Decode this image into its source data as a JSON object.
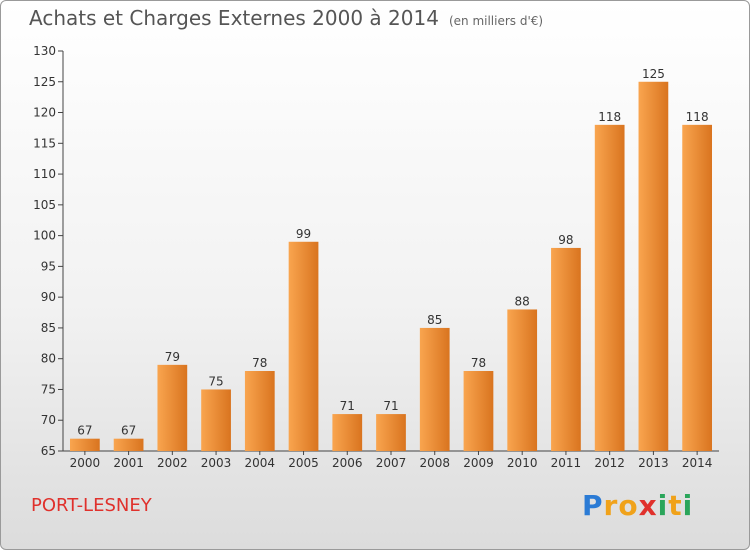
{
  "chart_data": {
    "type": "bar",
    "title": "Achats et Charges Externes 2000 à 2014",
    "subtitle": "(en milliers d'€)",
    "categories": [
      "2000",
      "2001",
      "2002",
      "2003",
      "2004",
      "2005",
      "2006",
      "2007",
      "2008",
      "2009",
      "2010",
      "2011",
      "2012",
      "2013",
      "2014"
    ],
    "values": [
      67,
      67,
      79,
      75,
      78,
      99,
      71,
      71,
      85,
      78,
      88,
      98,
      118,
      125,
      118
    ],
    "ylim": [
      65,
      130
    ],
    "yticks": [
      65,
      70,
      75,
      80,
      85,
      90,
      95,
      100,
      105,
      110,
      115,
      120,
      125,
      130
    ],
    "grid": false,
    "bar_color": "#f0852d"
  },
  "footer": {
    "city": "PORT-LESNEY",
    "logo_letters": [
      "P",
      "r",
      "o",
      "x",
      "i",
      "t",
      "i"
    ],
    "logo_colors": [
      "#2b7bd5",
      "#f0a21a",
      "#f0a21a",
      "#e0312c",
      "#2aa55a",
      "#f0a21a",
      "#2aa55a"
    ]
  }
}
